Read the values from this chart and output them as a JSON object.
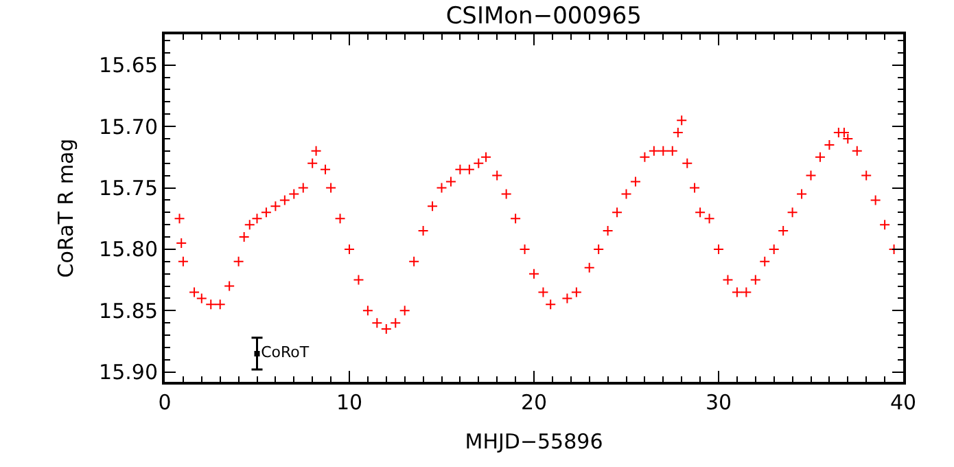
{
  "chart_data": {
    "type": "scatter",
    "title": "CSIMon−000965",
    "xlabel": "MHJD−55896",
    "ylabel": "CoRaT R mag",
    "xlim": [
      0,
      40
    ],
    "xticks": [
      0,
      10,
      20,
      30,
      40
    ],
    "ylim": [
      15.908,
      15.625
    ],
    "yticks": [
      15.65,
      {
        "value": 15.7,
        "label": "15.70"
      },
      15.75,
      {
        "value": 15.8,
        "label": "15.80"
      },
      15.85,
      {
        "value": 15.9,
        "label": "15.90"
      }
    ],
    "grid": false,
    "legend": false,
    "series": [
      {
        "color": "#ff0000",
        "marker": "cross",
        "x": [
          0.8,
          0.9,
          1.0,
          1.6,
          2.0,
          2.5,
          3.0,
          3.5,
          4.0,
          4.3,
          4.6,
          5.0,
          5.5,
          6.0,
          6.5,
          7.0,
          7.5,
          8.0,
          8.2,
          8.7,
          9.0,
          9.5,
          10.0,
          10.5,
          11.0,
          11.5,
          12.0,
          12.5,
          13.0,
          13.5,
          14.0,
          14.5,
          15.0,
          15.5,
          16.0,
          16.5,
          17.0,
          17.4,
          18.0,
          18.5,
          19.0,
          19.5,
          20.0,
          20.5,
          20.9,
          21.8,
          22.3,
          23.0,
          23.5,
          24.0,
          24.5,
          25.0,
          25.5,
          26.0,
          26.5,
          27.0,
          27.5,
          27.8,
          28.0,
          28.3,
          28.7,
          29.0,
          29.5,
          30.0,
          30.5,
          31.0,
          31.5,
          32.0,
          32.5,
          33.0,
          33.5,
          34.0,
          34.5,
          35.0,
          35.5,
          36.0,
          36.5,
          36.8,
          37.0,
          37.5,
          38.0,
          38.5,
          39.0,
          39.5
        ],
        "values": [
          15.775,
          15.795,
          15.81,
          15.835,
          15.84,
          15.845,
          15.845,
          15.83,
          15.81,
          15.79,
          15.78,
          15.775,
          15.77,
          15.765,
          15.76,
          15.755,
          15.75,
          15.73,
          15.72,
          15.735,
          15.75,
          15.775,
          15.8,
          15.825,
          15.85,
          15.86,
          15.865,
          15.86,
          15.85,
          15.81,
          15.785,
          15.765,
          15.75,
          15.745,
          15.735,
          15.735,
          15.73,
          15.725,
          15.74,
          15.755,
          15.775,
          15.8,
          15.82,
          15.835,
          15.845,
          15.84,
          15.835,
          15.815,
          15.8,
          15.785,
          15.77,
          15.755,
          15.745,
          15.725,
          15.72,
          15.72,
          15.72,
          15.705,
          15.695,
          15.73,
          15.75,
          15.77,
          15.775,
          15.8,
          15.825,
          15.835,
          15.835,
          15.825,
          15.81,
          15.8,
          15.785,
          15.77,
          15.755,
          15.74,
          15.725,
          15.715,
          15.705,
          15.705,
          15.71,
          15.72,
          15.74,
          15.76,
          15.78,
          15.8
        ]
      },
      {
        "name": "CoRoT",
        "color": "#000000",
        "marker": "square",
        "x": [
          5
        ],
        "values": [
          15.885
        ],
        "errors": [
          0.013
        ]
      }
    ]
  }
}
